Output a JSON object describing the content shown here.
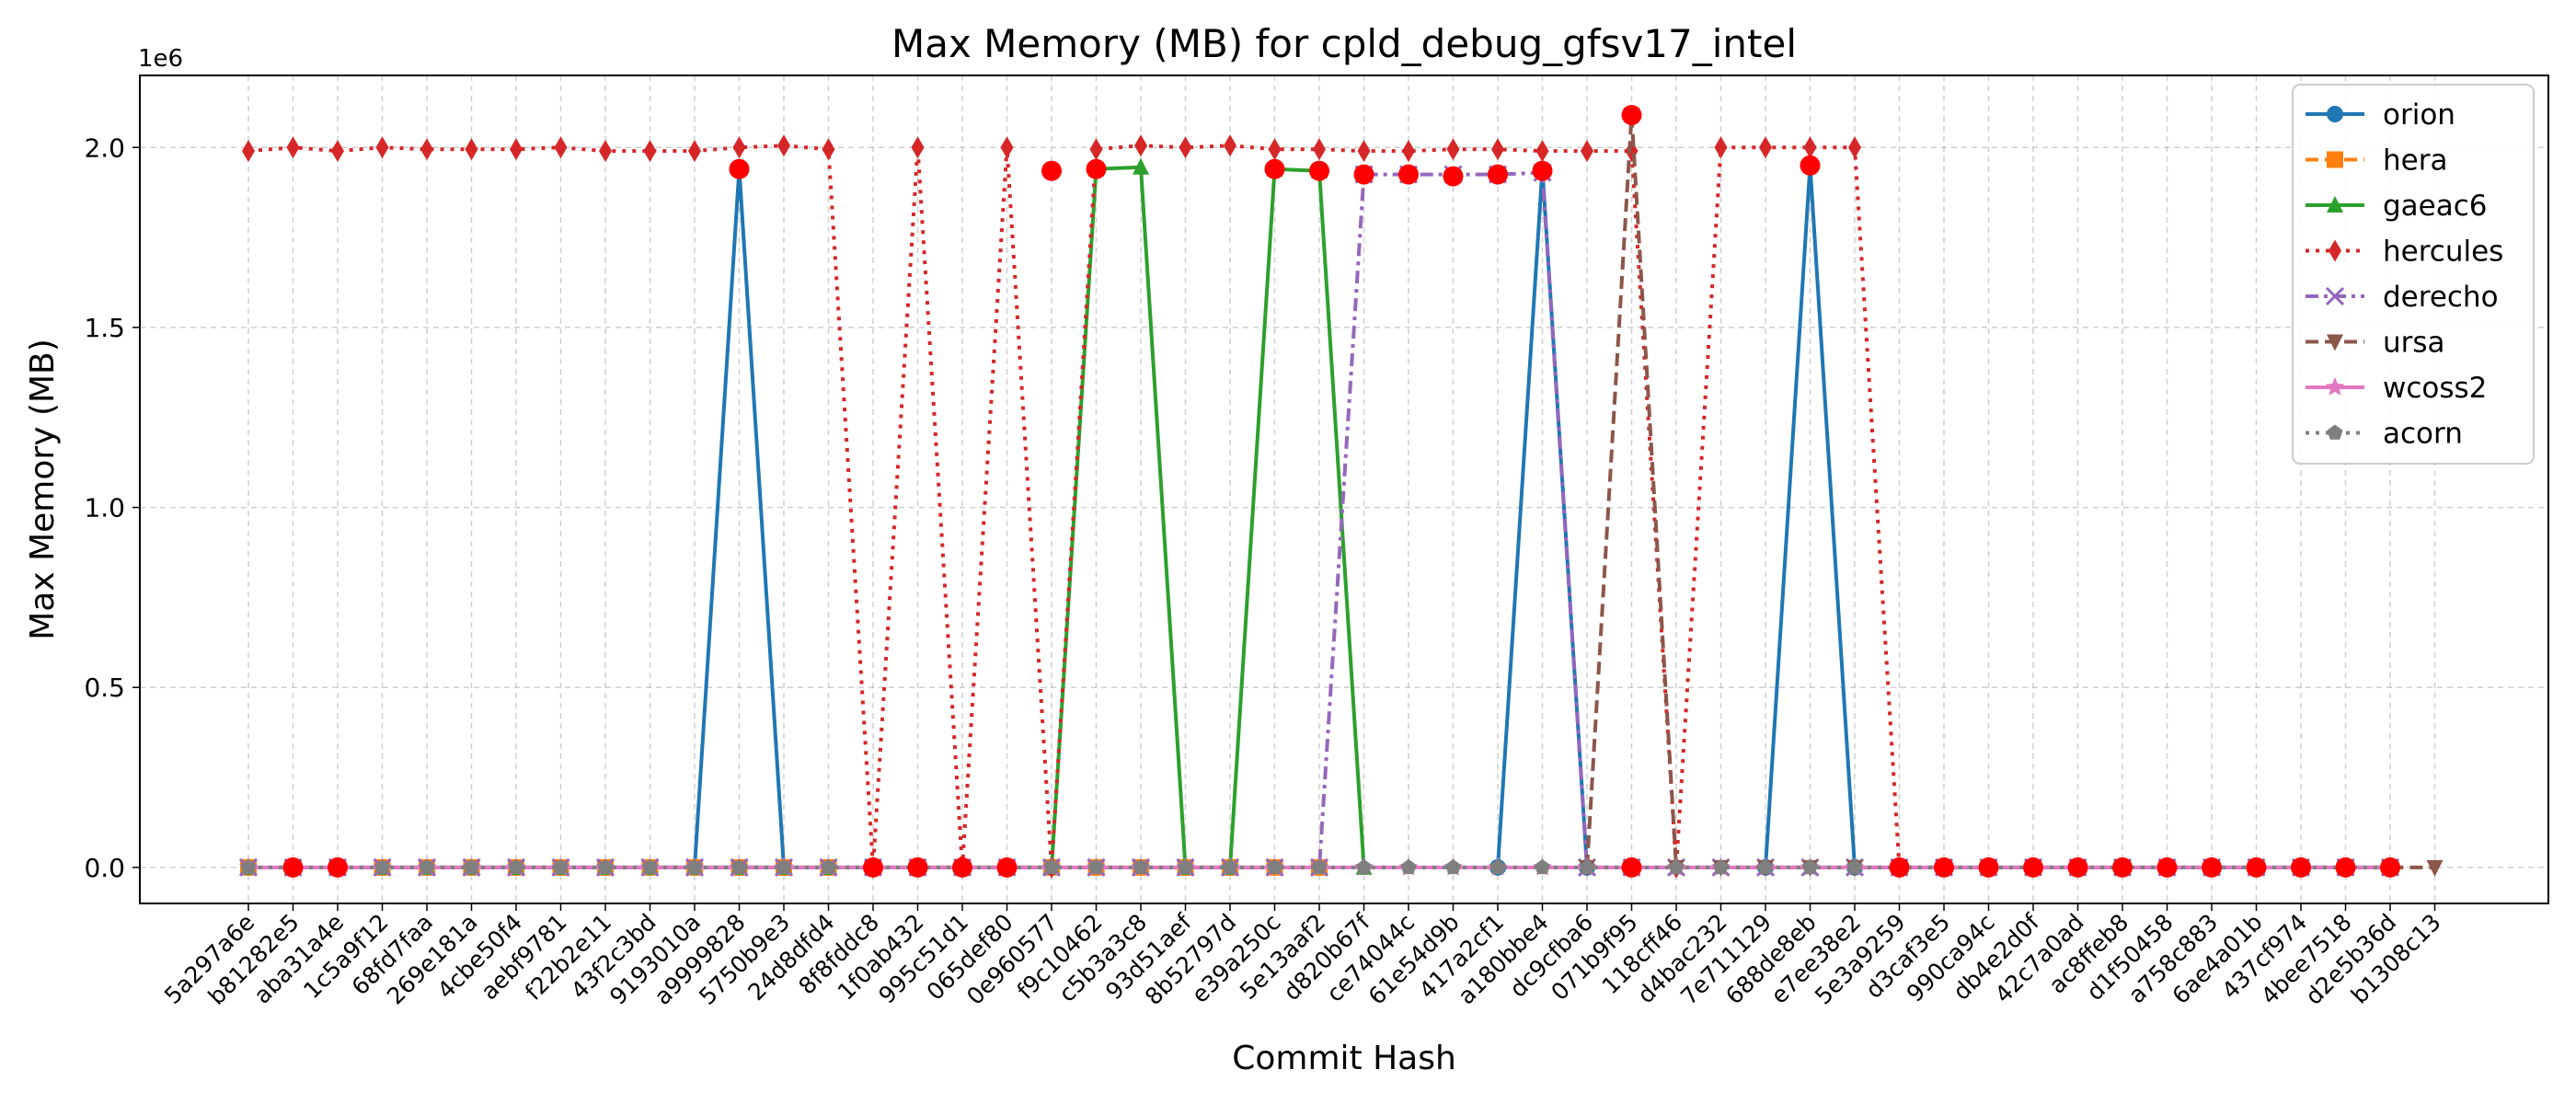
{
  "chart_data": {
    "type": "line",
    "title": "Max Memory (MB) for cpld_debug_gfsv17_intel",
    "xlabel": "Commit Hash",
    "ylabel": "Max Memory (MB)",
    "y_offset_label": "1e6",
    "ylim": [
      -100000,
      2200000
    ],
    "yticks": [
      0,
      500000,
      1000000,
      1500000,
      2000000
    ],
    "ytick_labels": [
      "0.0",
      "0.5",
      "1.0",
      "1.5",
      "2.0"
    ],
    "grid": true,
    "legend_position": "top-right",
    "categories": [
      "5a297a6e",
      "b81282e5",
      "aba31a4e",
      "1c5a9f12",
      "68fd7faa",
      "269e181a",
      "4cbe50f4",
      "aebf9781",
      "f22b2e11",
      "43f2c3bd",
      "9193010a",
      "a9999828",
      "5750b9e3",
      "24d8dfd4",
      "8f8fddc8",
      "1f0ab432",
      "995c51d1",
      "065def80",
      "0e960577",
      "f9c10462",
      "c5b3a3c8",
      "93d51aef",
      "8b52797d",
      "e39a250c",
      "5e13aaf2",
      "d820b67f",
      "ce74044c",
      "61e54d9b",
      "417a2cf1",
      "a180bbe4",
      "dc9cfba6",
      "071b9f95",
      "118cff46",
      "d4bac232",
      "7e711129",
      "688de8eb",
      "e7ee38e2",
      "5e3a9259",
      "d3caf3e5",
      "990ca94c",
      "db4e2d0f",
      "42c7a0ad",
      "ac8ffeb8",
      "d1f50458",
      "a758c883",
      "6ae4a01b",
      "437cf974",
      "4bee7518",
      "d2e5b36d",
      "b1308c13"
    ],
    "series": [
      {
        "name": "orion",
        "color": "#1f77b4",
        "dash": "solid",
        "marker": "circle",
        "values": [
          0,
          null,
          null,
          null,
          null,
          null,
          null,
          null,
          null,
          0,
          0,
          1940000,
          0,
          null,
          null,
          null,
          null,
          null,
          null,
          null,
          null,
          null,
          null,
          null,
          null,
          null,
          null,
          null,
          0,
          1940000,
          0,
          null,
          null,
          null,
          0,
          1950000,
          0,
          null,
          null,
          null,
          null,
          null,
          null,
          null,
          null,
          null,
          null,
          null,
          null,
          null
        ]
      },
      {
        "name": "hera",
        "color": "#ff7f0e",
        "dash": "dashed",
        "marker": "square",
        "values": [
          0,
          null,
          null,
          0,
          0,
          0,
          0,
          0,
          0,
          0,
          0,
          0,
          0,
          0,
          0,
          0,
          0,
          0,
          0,
          0,
          0,
          0,
          0,
          0,
          0,
          null,
          null,
          null,
          null,
          null,
          null,
          null,
          null,
          null,
          null,
          null,
          null,
          null,
          null,
          null,
          null,
          null,
          null,
          null,
          null,
          null,
          null,
          null,
          null,
          null
        ]
      },
      {
        "name": "gaeac6",
        "color": "#2ca02c",
        "dash": "solid",
        "marker": "triangle",
        "values": [
          0,
          null,
          null,
          0,
          0,
          0,
          0,
          0,
          0,
          0,
          0,
          0,
          0,
          0,
          0,
          0,
          0,
          0,
          0,
          1940000,
          1945000,
          0,
          0,
          1940000,
          1935000,
          0,
          null,
          null,
          null,
          null,
          null,
          null,
          null,
          null,
          null,
          null,
          null,
          null,
          null,
          null,
          null,
          null,
          null,
          null,
          null,
          null,
          null,
          null,
          null,
          null
        ]
      },
      {
        "name": "hercules",
        "color": "#d62728",
        "dash": "dotted",
        "marker": "diamond",
        "values": [
          1990000,
          2000000,
          1990000,
          2000000,
          1995000,
          1995000,
          1995000,
          2000000,
          1990000,
          1990000,
          1990000,
          2000000,
          2005000,
          1995000,
          0,
          2000000,
          0,
          2000000,
          0,
          1995000,
          2005000,
          2000000,
          2005000,
          1995000,
          1995000,
          1990000,
          1990000,
          1995000,
          1995000,
          1990000,
          1990000,
          1990000,
          0,
          2000000,
          2000000,
          2000000,
          2000000,
          0,
          null,
          null,
          null,
          null,
          null,
          null,
          null,
          null,
          null,
          null,
          null,
          null
        ]
      },
      {
        "name": "derecho",
        "color": "#9467bd",
        "dash": "dashdot",
        "marker": "x",
        "values": [
          0,
          0,
          0,
          0,
          0,
          0,
          0,
          0,
          0,
          0,
          0,
          0,
          0,
          0,
          0,
          0,
          0,
          0,
          0,
          0,
          0,
          0,
          0,
          0,
          0,
          1925000,
          1925000,
          1925000,
          1925000,
          1930000,
          0,
          0,
          0,
          0,
          0,
          0,
          0,
          0,
          0,
          0,
          0,
          0,
          0,
          0,
          0,
          0,
          0,
          0,
          0,
          null
        ]
      },
      {
        "name": "ursa",
        "color": "#8c564b",
        "dash": "dashed",
        "marker": "triangle-down",
        "values": [
          null,
          null,
          null,
          null,
          null,
          null,
          null,
          null,
          null,
          null,
          null,
          null,
          null,
          null,
          null,
          null,
          null,
          null,
          null,
          null,
          null,
          null,
          null,
          null,
          null,
          null,
          null,
          null,
          null,
          null,
          0,
          2090000,
          0,
          0,
          0,
          0,
          0,
          0,
          0,
          0,
          0,
          0,
          0,
          0,
          0,
          0,
          0,
          0,
          0,
          0
        ]
      },
      {
        "name": "wcoss2",
        "color": "#e377c2",
        "dash": "solid",
        "marker": "star",
        "values": [
          0,
          0,
          0,
          0,
          0,
          0,
          0,
          0,
          0,
          0,
          0,
          0,
          0,
          0,
          0,
          0,
          0,
          0,
          0,
          0,
          0,
          0,
          0,
          0,
          0,
          0,
          0,
          0,
          0,
          0,
          0,
          0,
          0,
          0,
          0,
          0,
          0,
          0,
          0,
          0,
          0,
          0,
          0,
          0,
          0,
          0,
          0,
          0,
          0,
          null
        ]
      },
      {
        "name": "acorn",
        "color": "#7f7f7f",
        "dash": "dotted",
        "marker": "pentagon",
        "values": [
          0,
          0,
          0,
          0,
          0,
          0,
          0,
          0,
          0,
          0,
          0,
          0,
          0,
          0,
          0,
          0,
          0,
          0,
          0,
          0,
          0,
          0,
          0,
          0,
          0,
          0,
          0,
          0,
          0,
          0,
          0,
          0,
          0,
          0,
          0,
          0,
          0,
          0,
          0,
          0,
          0,
          0,
          0,
          0,
          0,
          0,
          0,
          0,
          0,
          null
        ]
      }
    ],
    "highlights": {
      "color": "#ff0000",
      "points": [
        {
          "x": 1,
          "y": 0
        },
        {
          "x": 2,
          "y": 0
        },
        {
          "x": 11,
          "y": 1940000
        },
        {
          "x": 14,
          "y": 0
        },
        {
          "x": 15,
          "y": 0
        },
        {
          "x": 16,
          "y": 0
        },
        {
          "x": 17,
          "y": 0
        },
        {
          "x": 18,
          "y": 1935000
        },
        {
          "x": 19,
          "y": 1940000
        },
        {
          "x": 23,
          "y": 1940000
        },
        {
          "x": 24,
          "y": 1935000
        },
        {
          "x": 25,
          "y": 1925000
        },
        {
          "x": 26,
          "y": 1925000
        },
        {
          "x": 27,
          "y": 1920000
        },
        {
          "x": 28,
          "y": 1925000
        },
        {
          "x": 29,
          "y": 1935000
        },
        {
          "x": 31,
          "y": 0
        },
        {
          "x": 31,
          "y": 2090000
        },
        {
          "x": 35,
          "y": 1950000
        },
        {
          "x": 37,
          "y": 0
        },
        {
          "x": 38,
          "y": 0
        },
        {
          "x": 39,
          "y": 0
        },
        {
          "x": 40,
          "y": 0
        },
        {
          "x": 41,
          "y": 0
        },
        {
          "x": 42,
          "y": 0
        },
        {
          "x": 43,
          "y": 0
        },
        {
          "x": 44,
          "y": 0
        },
        {
          "x": 45,
          "y": 0
        },
        {
          "x": 46,
          "y": 0
        },
        {
          "x": 47,
          "y": 0
        },
        {
          "x": 48,
          "y": 0
        }
      ]
    }
  }
}
